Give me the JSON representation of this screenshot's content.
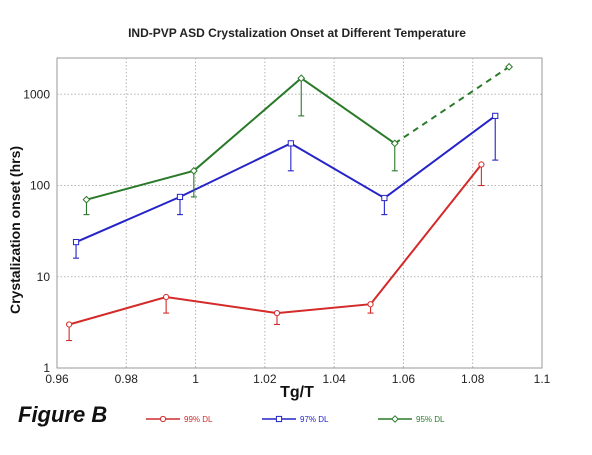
{
  "figure_label": "Figure B",
  "chart_data": {
    "type": "line",
    "title": "IND-PVP ASD Crystalization Onset at Different Temperature",
    "xlabel": "Tg/T",
    "ylabel": "Crystalization onset (hrs)",
    "xlim": [
      0.96,
      1.1
    ],
    "ylim": [
      1,
      2500
    ],
    "yscale": "log",
    "grid": true,
    "legend_position": "bottom",
    "x_ticks": [
      0.96,
      0.98,
      1,
      1.02,
      1.04,
      1.06,
      1.08,
      1.1
    ],
    "x_tick_labels": [
      "0.96",
      "0.98",
      "1",
      "1.02",
      "1.04",
      "1.06",
      "1.08",
      "1.1"
    ],
    "y_ticks": [
      1,
      10,
      100,
      1000
    ],
    "y_tick_labels": [
      "1",
      "10",
      "100",
      "1000"
    ],
    "series": [
      {
        "name": "99% DL",
        "color": "#d42a2a",
        "marker": "circle",
        "x": [
          0.9635,
          0.9915,
          1.0235,
          1.0505,
          1.0825
        ],
        "y": [
          3,
          6,
          4,
          5,
          170
        ],
        "err_low": [
          2,
          4,
          3,
          4,
          100
        ]
      },
      {
        "name": "97% DL",
        "color": "#2424c8",
        "marker": "square",
        "x": [
          0.9655,
          0.9955,
          1.0275,
          1.0545,
          1.0865
        ],
        "y": [
          24,
          75,
          290,
          73,
          580
        ],
        "err_low": [
          16,
          48,
          145,
          48,
          190
        ]
      },
      {
        "name": "95% DL",
        "color": "#2a7a2a",
        "marker": "diamond",
        "x": [
          0.9685,
          0.9995,
          1.0305,
          1.0575
        ],
        "y": [
          70,
          145,
          1500,
          290
        ],
        "err_low": [
          48,
          75,
          580,
          145
        ],
        "extrapolated": {
          "x": [
            1.0575,
            1.0905
          ],
          "y": [
            290,
            2000
          ]
        }
      }
    ]
  }
}
